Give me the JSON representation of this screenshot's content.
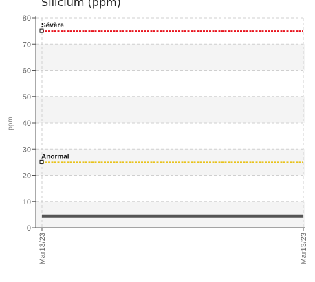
{
  "chart_data": {
    "type": "line",
    "title": "Silicium (ppm)",
    "ylabel": "ppm",
    "xlabel": "",
    "x": [
      "Mar13/23",
      "Mar13/23"
    ],
    "ylim": [
      0,
      80
    ],
    "y_ticks": [
      0,
      10,
      20,
      30,
      40,
      50,
      60,
      70,
      80
    ],
    "grid": true,
    "series": [
      {
        "values": [
          4.5,
          4.5
        ],
        "color": "#555555"
      }
    ],
    "thresholds": [
      {
        "label": "Sévère",
        "value": 75,
        "color": "#e8141e"
      },
      {
        "label": "Anormal",
        "value": 25,
        "color": "#e8c21a"
      }
    ]
  }
}
